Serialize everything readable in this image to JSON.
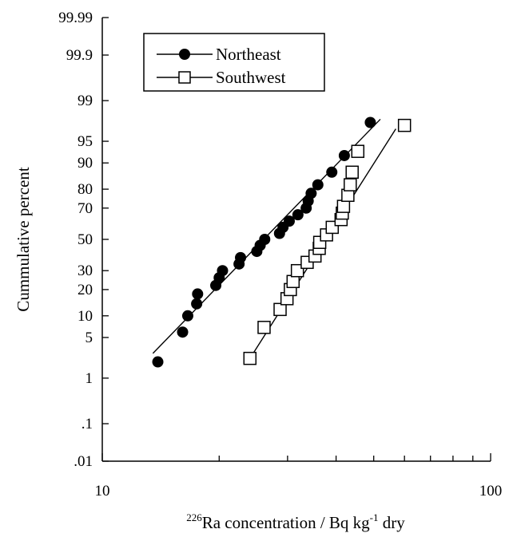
{
  "chart_data": {
    "type": "scatter",
    "title": "",
    "xlabel": {
      "prefix_sup": "226",
      "main": "Ra concentration / Bq kg",
      "sup": "-1",
      "suffix": " dry"
    },
    "ylabel": "Cummulative percent",
    "x_scale": "log",
    "y_scale": "normal-probability",
    "xlim": [
      10,
      100
    ],
    "ylim": [
      0.01,
      99.99
    ],
    "x_ticks": [
      {
        "value": 10,
        "label": "10"
      },
      {
        "value": 100,
        "label": "100"
      }
    ],
    "y_ticks": [
      {
        "value": 0.01,
        "label": ".01"
      },
      {
        "value": 0.1,
        "label": ".1"
      },
      {
        "value": 1,
        "label": "1"
      },
      {
        "value": 5,
        "label": "5"
      },
      {
        "value": 10,
        "label": "10"
      },
      {
        "value": 20,
        "label": "20"
      },
      {
        "value": 30,
        "label": "30"
      },
      {
        "value": 50,
        "label": "50"
      },
      {
        "value": 70,
        "label": "70"
      },
      {
        "value": 80,
        "label": "80"
      },
      {
        "value": 90,
        "label": "90"
      },
      {
        "value": 95,
        "label": "95"
      },
      {
        "value": 99,
        "label": "99"
      },
      {
        "value": 99.9,
        "label": "99.9"
      },
      {
        "value": 99.99,
        "label": "99.99"
      }
    ],
    "legend_position": "top-left",
    "grid": false,
    "series": [
      {
        "name": "Northeast",
        "marker": "filled-circle",
        "color": "#000000",
        "points": [
          {
            "x": 13.9,
            "y": 2.0
          },
          {
            "x": 16.1,
            "y": 6.0
          },
          {
            "x": 16.6,
            "y": 10.0
          },
          {
            "x": 17.5,
            "y": 14.0
          },
          {
            "x": 17.6,
            "y": 18.0
          },
          {
            "x": 19.6,
            "y": 22.0
          },
          {
            "x": 20.0,
            "y": 26.0
          },
          {
            "x": 20.4,
            "y": 30.0
          },
          {
            "x": 22.5,
            "y": 34.0
          },
          {
            "x": 22.7,
            "y": 38.0
          },
          {
            "x": 25.0,
            "y": 42.0
          },
          {
            "x": 25.5,
            "y": 46.0
          },
          {
            "x": 26.2,
            "y": 50.0
          },
          {
            "x": 28.6,
            "y": 54.0
          },
          {
            "x": 29.2,
            "y": 58.0
          },
          {
            "x": 30.3,
            "y": 62.0
          },
          {
            "x": 31.9,
            "y": 66.0
          },
          {
            "x": 33.5,
            "y": 70.0
          },
          {
            "x": 33.9,
            "y": 74.0
          },
          {
            "x": 34.5,
            "y": 78.0
          },
          {
            "x": 35.9,
            "y": 82.0
          },
          {
            "x": 39.0,
            "y": 87.0
          },
          {
            "x": 42.0,
            "y": 92.0
          },
          {
            "x": 49.0,
            "y": 97.5
          }
        ],
        "fit": {
          "x": [
            13.5,
            52.0
          ],
          "y": [
            2.8,
            97.8
          ]
        }
      },
      {
        "name": "Southwest",
        "marker": "open-square",
        "color": "#000000",
        "points": [
          {
            "x": 24.0,
            "y": 2.3
          },
          {
            "x": 26.1,
            "y": 7.0
          },
          {
            "x": 28.7,
            "y": 12.0
          },
          {
            "x": 29.9,
            "y": 16.0
          },
          {
            "x": 30.5,
            "y": 20.0
          },
          {
            "x": 31.0,
            "y": 24.0
          },
          {
            "x": 31.8,
            "y": 30.0
          },
          {
            "x": 33.7,
            "y": 35.0
          },
          {
            "x": 35.3,
            "y": 39.0
          },
          {
            "x": 36.2,
            "y": 44.0
          },
          {
            "x": 36.3,
            "y": 48.0
          },
          {
            "x": 37.8,
            "y": 53.0
          },
          {
            "x": 39.1,
            "y": 58.0
          },
          {
            "x": 41.2,
            "y": 63.0
          },
          {
            "x": 41.5,
            "y": 67.0
          },
          {
            "x": 41.8,
            "y": 71.0
          },
          {
            "x": 42.9,
            "y": 77.0
          },
          {
            "x": 43.5,
            "y": 82.0
          },
          {
            "x": 44.0,
            "y": 87.0
          },
          {
            "x": 45.5,
            "y": 93.0
          },
          {
            "x": 60.0,
            "y": 97.2
          }
        ],
        "fit": {
          "x": [
            24.2,
            57.0
          ],
          "y": [
            2.5,
            96.8
          ]
        }
      }
    ]
  }
}
